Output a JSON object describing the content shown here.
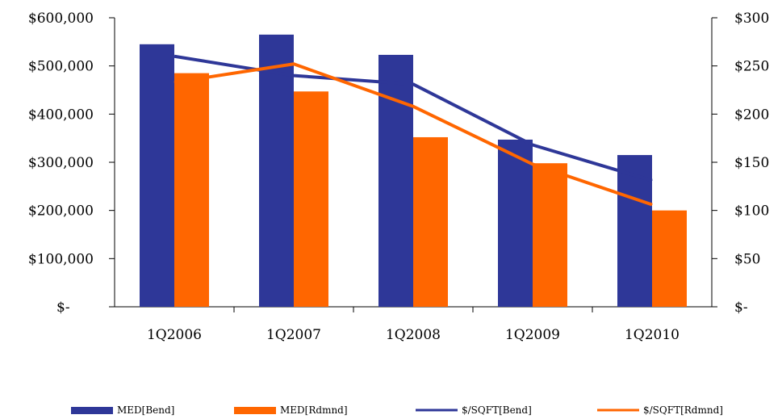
{
  "chart_data": {
    "type": "bar",
    "categories": [
      "1Q2006",
      "1Q2007",
      "1Q2008",
      "1Q2009",
      "1Q2010"
    ],
    "bar_series": [
      {
        "name": "MED[Bend]",
        "color": "#2E3798",
        "axis": "left",
        "values": [
          545000,
          565000,
          523000,
          347000,
          315000
        ]
      },
      {
        "name": "MED[Rdmnd]",
        "color": "#FF6600",
        "axis": "left",
        "values": [
          485000,
          447000,
          352000,
          298000,
          200000
        ]
      }
    ],
    "line_series": [
      {
        "name": "$/SQFT[Bend]",
        "color": "#2E3798",
        "axis": "right",
        "values": [
          260,
          240,
          231,
          168,
          131
        ]
      },
      {
        "name": "$/SQFT[Rdmnd]",
        "color": "#FF6600",
        "axis": "right",
        "values": [
          233,
          252,
          208,
          148,
          106
        ]
      }
    ],
    "left_axis": {
      "ylim": [
        0,
        600000
      ],
      "ticks": [
        0,
        100000,
        200000,
        300000,
        400000,
        500000,
        600000
      ],
      "tick_labels": [
        "$-",
        "$100,000",
        "$200,000",
        "$300,000",
        "$400,000",
        "$500,000",
        "$600,000"
      ]
    },
    "right_axis": {
      "ylim": [
        0,
        300
      ],
      "ticks": [
        0,
        50,
        100,
        150,
        200,
        250,
        300
      ],
      "tick_labels": [
        "$-",
        "$50",
        "$100",
        "$150",
        "$200",
        "$250",
        "$300"
      ]
    },
    "grid": false,
    "legend_position": "bottom",
    "title": "",
    "xlabel": "",
    "ylabel": ""
  }
}
